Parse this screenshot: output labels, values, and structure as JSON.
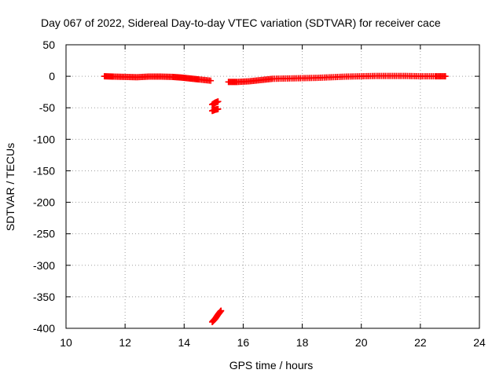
{
  "chart_data": {
    "type": "scatter",
    "title": "Day 067 of 2022, Sidereal Day-to-day VTEC variation (SDTVAR) for receiver cace",
    "xlabel": "GPS time / hours",
    "ylabel": "SDTVAR / TECUs",
    "xlim": [
      10,
      24
    ],
    "ylim": [
      -400,
      50
    ],
    "xticks": [
      10,
      12,
      14,
      16,
      18,
      20,
      22,
      24
    ],
    "yticks": [
      50,
      0,
      -50,
      -100,
      -150,
      -200,
      -250,
      -300,
      -350,
      -400
    ],
    "grid": true,
    "marker": "plus",
    "colors": {
      "series": "#ff0000",
      "grid": "#a0a0a0",
      "axis": "#000000"
    },
    "series": [
      {
        "name": "SDTVAR",
        "segments": [
          {
            "x": [
              11.3,
              11.6,
              12.0,
              12.4,
              12.8,
              13.2,
              13.6,
              13.9,
              14.2,
              14.5,
              14.9
            ],
            "y": [
              0,
              -0.5,
              -1,
              -1.5,
              -0.5,
              -0.5,
              -1,
              -2,
              -3.5,
              -5,
              -7
            ]
          },
          {
            "x": [
              14.95,
              15.05,
              15.15
            ],
            "y": [
              -45,
              -42,
              -40
            ]
          },
          {
            "x": [
              14.95,
              15.05,
              15.15
            ],
            "y": [
              -55,
              -53,
              -52
            ]
          },
          {
            "x": [
              14.95,
              15.05,
              15.15,
              15.25
            ],
            "y": [
              -390,
              -385,
              -378,
              -372
            ]
          },
          {
            "x": [
              15.5,
              15.8,
              16.2,
              16.6,
              17.0,
              17.5,
              18.0,
              18.5,
              19.0,
              19.5,
              20.0,
              20.5,
              21.0,
              21.5,
              22.0,
              22.5,
              22.85
            ],
            "y": [
              -9,
              -9,
              -8,
              -6,
              -4,
              -3.5,
              -3,
              -2.5,
              -1.5,
              -0.5,
              0,
              0.5,
              0.5,
              0.5,
              0,
              0,
              0
            ]
          }
        ]
      }
    ]
  }
}
